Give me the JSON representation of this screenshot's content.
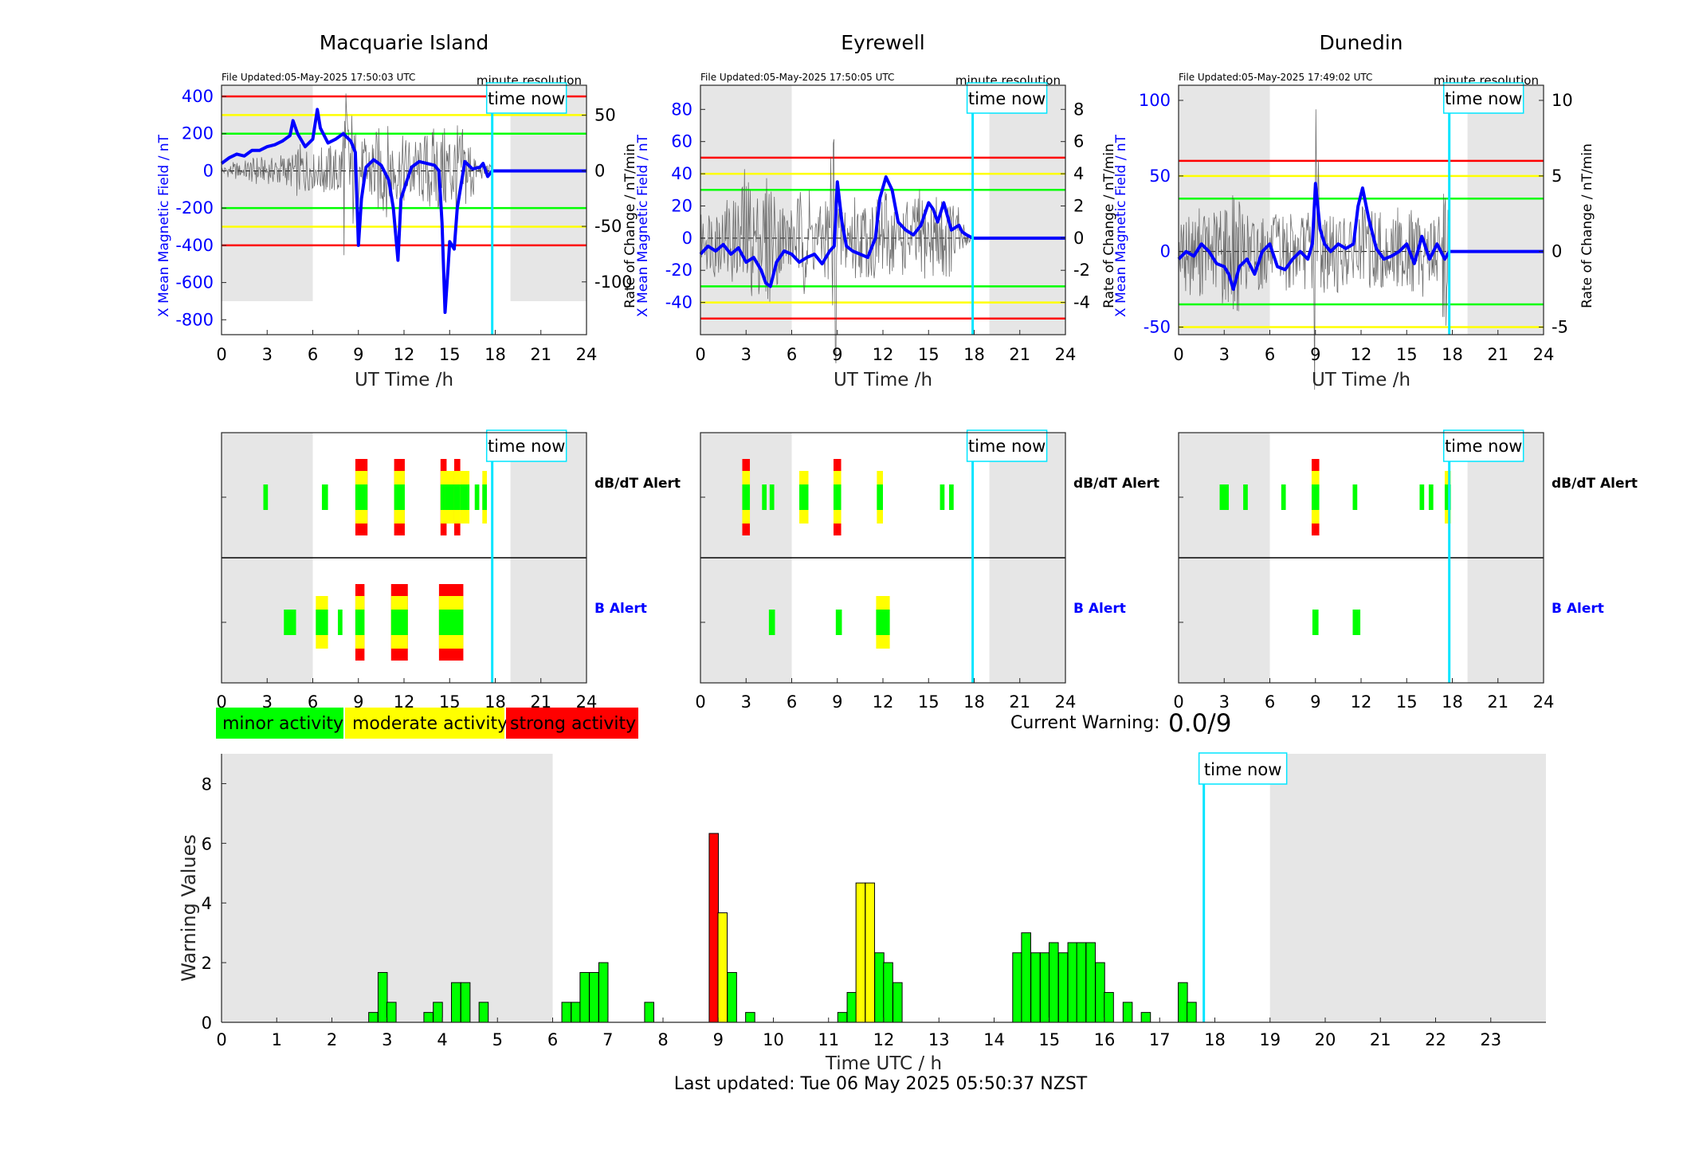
{
  "colors": {
    "red": "#ff0000",
    "yellow": "#ffff00",
    "green": "#00ff00",
    "blue": "#0000ff",
    "cyan": "#00e5ff",
    "grey_band": "#e6e6e6",
    "axis": "#262626"
  },
  "labels": {
    "time_now": "time now",
    "minute_resolution": "minute resolution",
    "ut_time": "UT Time /h",
    "y_left": "X Mean Magnetic Field / nT",
    "y_right": "Rate of Change / nT/min",
    "dbdt_alert": "dB/dT Alert",
    "b_alert": "B Alert",
    "minor": "minor activity",
    "moderate": "moderate activity",
    "strong": "strong activity",
    "current_warning_label": "Current Warning:",
    "current_warning_value": "0.0/9",
    "warning_values": "Warning Values",
    "time_utc": "Time UTC / h",
    "last_updated": "Last updated: Tue 06 May 2025 05:50:37 NZST"
  },
  "chart_data": [
    {
      "type": "line",
      "title": "Macquarie Island",
      "file_updated": "File Updated:05-May-2025 17:50:03 UTC",
      "xlabel": "UT Time /h",
      "ylabel": "X Mean Magnetic Field / nT",
      "y2label": "Rate of Change / nT/min",
      "xlim": [
        0,
        24
      ],
      "ylim": [
        -880,
        460
      ],
      "y2lim": [
        -147.5,
        77
      ],
      "xticks": [
        0,
        3,
        6,
        9,
        12,
        15,
        18,
        21,
        24
      ],
      "yticks": [
        400,
        200,
        0,
        -200,
        -400,
        -600,
        -800
      ],
      "y2ticks": [
        50,
        0,
        -50,
        -100
      ],
      "grey_bands": [
        [
          0,
          6
        ],
        [
          19,
          24
        ]
      ],
      "grey_band_bottom": -700,
      "time_now": 17.8,
      "thresholds": {
        "red": [
          400,
          -400
        ],
        "yellow": [
          300,
          -300
        ],
        "green": [
          200,
          -200
        ]
      },
      "x": [
        0,
        0.5,
        1,
        1.5,
        2,
        2.5,
        3,
        3.5,
        4,
        4.5,
        4.7,
        5,
        5.5,
        6,
        6.3,
        6.5,
        7,
        7.5,
        8,
        8.5,
        8.8,
        9,
        9.2,
        9.5,
        10,
        10.5,
        11,
        11.3,
        11.6,
        11.8,
        12.2,
        12.5,
        13,
        13.5,
        14,
        14.3,
        14.5,
        14.7,
        14.9,
        15,
        15.3,
        15.5,
        16,
        16.5,
        17,
        17.2,
        17.5,
        17.8
      ],
      "values": [
        40,
        70,
        90,
        80,
        110,
        110,
        130,
        140,
        160,
        190,
        270,
        200,
        130,
        170,
        330,
        230,
        150,
        170,
        200,
        160,
        100,
        -400,
        -150,
        20,
        60,
        30,
        -50,
        -200,
        -480,
        -150,
        -50,
        20,
        50,
        40,
        30,
        0,
        -280,
        -760,
        -520,
        -380,
        -420,
        -200,
        50,
        10,
        20,
        40,
        -30,
        0
      ],
      "after_now": 0,
      "rate_of_change_envelope": [
        4,
        6,
        8,
        6,
        10,
        12,
        14,
        10,
        12,
        14,
        16,
        14,
        16,
        24,
        22,
        18,
        16,
        22,
        24,
        22,
        30,
        80,
        60,
        40,
        30,
        34,
        38,
        40,
        42,
        38,
        30,
        32,
        34,
        30,
        28,
        36,
        40,
        42,
        40,
        44,
        42,
        40,
        36,
        32,
        10,
        8,
        6,
        4
      ]
    },
    {
      "type": "line",
      "title": "Eyrewell",
      "file_updated": "File Updated:05-May-2025 17:50:05 UTC",
      "xlabel": "UT Time /h",
      "ylabel": "X Mean Magnetic Field / nT",
      "y2label": "Rate of Change / nT/min",
      "xlim": [
        0,
        24
      ],
      "ylim": [
        -60,
        95
      ],
      "y2lim": [
        -6,
        9.5
      ],
      "xticks": [
        0,
        3,
        6,
        9,
        12,
        15,
        18,
        21,
        24
      ],
      "yticks": [
        80,
        60,
        40,
        20,
        0,
        -20,
        -40
      ],
      "y2ticks": [
        8,
        6,
        4,
        2,
        0,
        -2,
        -4
      ],
      "grey_bands": [
        [
          0,
          6
        ],
        [
          19,
          24
        ]
      ],
      "grey_band_bottom": -60,
      "time_now": 17.9,
      "thresholds": {
        "red": [
          50,
          -50
        ],
        "yellow": [
          40,
          -40
        ],
        "green": [
          30,
          -30
        ]
      },
      "x": [
        0,
        0.5,
        1,
        1.5,
        2,
        2.5,
        3,
        3.5,
        4,
        4.3,
        4.6,
        5,
        5.5,
        6,
        6.5,
        7,
        7.5,
        8,
        8.5,
        8.8,
        9,
        9.3,
        9.6,
        10,
        10.5,
        11,
        11.5,
        11.8,
        12.2,
        12.6,
        13,
        13.5,
        14,
        14.5,
        15,
        15.3,
        15.6,
        16,
        16.5,
        17,
        17.2,
        17.5,
        17.9
      ],
      "values": [
        -10,
        -5,
        -8,
        -4,
        -10,
        -6,
        -15,
        -12,
        -20,
        -28,
        -30,
        -15,
        -8,
        -10,
        -15,
        -12,
        -10,
        -16,
        -8,
        -5,
        35,
        10,
        -5,
        -8,
        -10,
        -12,
        0,
        25,
        38,
        30,
        10,
        5,
        2,
        8,
        22,
        18,
        10,
        22,
        5,
        8,
        4,
        2,
        0
      ],
      "after_now": 0,
      "rate_of_change_envelope": [
        1.5,
        2,
        2.5,
        2,
        3,
        2.5,
        4.5,
        4,
        3,
        3.5,
        4.2,
        3,
        2.5,
        2.2,
        2,
        3,
        3.5,
        2.5,
        2,
        3,
        8.5,
        3,
        2.5,
        3,
        2.5,
        2.5,
        3,
        2.5,
        3,
        2.5,
        2,
        2.5,
        2.2,
        3,
        2.6,
        2.5,
        3,
        2.8,
        2.5,
        2.2,
        1,
        0.5,
        0.2
      ]
    },
    {
      "type": "line",
      "title": "Dunedin",
      "file_updated": "File Updated:05-May-2025 17:49:02 UTC",
      "xlabel": "UT Time /h",
      "ylabel": "X Mean Magnetic Field / nT",
      "y2label": "Rate of Change / nT/min",
      "xlim": [
        0,
        24
      ],
      "ylim": [
        -55,
        110
      ],
      "y2lim": [
        -5.5,
        11
      ],
      "xticks": [
        0,
        3,
        6,
        9,
        12,
        15,
        18,
        21,
        24
      ],
      "yticks": [
        100,
        50,
        0,
        -50
      ],
      "y2ticks": [
        10,
        5,
        0,
        -5
      ],
      "grey_bands": [
        [
          0,
          6
        ],
        [
          19,
          24
        ]
      ],
      "grey_band_bottom": -55,
      "time_now": 17.8,
      "thresholds": {
        "red": [
          60
        ],
        "yellow": [
          50,
          -50
        ],
        "green": [
          35,
          -35
        ]
      },
      "x": [
        0,
        0.5,
        1,
        1.5,
        2,
        2.5,
        3,
        3.3,
        3.6,
        4,
        4.5,
        5,
        5.5,
        6,
        6.5,
        7,
        7.5,
        8,
        8.5,
        8.8,
        9,
        9.3,
        9.6,
        10,
        10.5,
        11,
        11.5,
        11.8,
        12.1,
        12.5,
        13,
        13.5,
        14,
        14.5,
        15,
        15.5,
        16,
        16.5,
        17,
        17.5,
        17.8
      ],
      "values": [
        -5,
        0,
        -3,
        5,
        0,
        -8,
        -10,
        -15,
        -25,
        -10,
        -5,
        -15,
        0,
        5,
        -10,
        -12,
        -5,
        0,
        -5,
        5,
        45,
        15,
        5,
        0,
        5,
        2,
        5,
        30,
        42,
        22,
        2,
        -5,
        -3,
        0,
        5,
        -8,
        10,
        -5,
        5,
        -5,
        0
      ],
      "after_now": 0,
      "rate_of_change_envelope": [
        2,
        3,
        2.5,
        3,
        2.5,
        3,
        4,
        3.5,
        4,
        3,
        2.5,
        3,
        2.5,
        2,
        2.5,
        3,
        2.5,
        2,
        2.5,
        3,
        10,
        3,
        2.5,
        3,
        2.5,
        2,
        2.5,
        3,
        3.5,
        3,
        2.5,
        2.5,
        3,
        2.5,
        3,
        2.5,
        3,
        2.5,
        2.5,
        5,
        1
      ]
    },
    {
      "type": "bar",
      "title": "",
      "xlabel": "Time UTC / h",
      "ylabel": "Warning Values",
      "xlim": [
        0,
        24
      ],
      "ylim": [
        0,
        9
      ],
      "xticks": [
        0,
        1,
        2,
        3,
        4,
        5,
        6,
        7,
        8,
        9,
        10,
        11,
        12,
        13,
        14,
        15,
        16,
        17,
        18,
        19,
        20,
        21,
        22,
        23
      ],
      "yticks": [
        0,
        2,
        4,
        6,
        8
      ],
      "grey_bands": [
        [
          0,
          6
        ],
        [
          19,
          24
        ]
      ],
      "time_now": 17.8,
      "bar_width_h": 0.1667,
      "x": [
        2.75,
        2.92,
        3.08,
        3.75,
        3.92,
        4.25,
        4.42,
        4.75,
        6.25,
        6.42,
        6.58,
        6.75,
        6.92,
        7.75,
        8.92,
        9.08,
        9.25,
        9.58,
        11.25,
        11.42,
        11.58,
        11.75,
        11.92,
        12.08,
        12.25,
        14.42,
        14.58,
        14.75,
        14.92,
        15.08,
        15.25,
        15.42,
        15.58,
        15.75,
        15.92,
        16.08,
        16.42,
        16.75,
        17.42,
        17.58
      ],
      "values": [
        0.33,
        1.67,
        0.67,
        0.33,
        0.67,
        1.33,
        1.33,
        0.67,
        0.67,
        0.67,
        1.67,
        1.67,
        2.0,
        0.67,
        6.33,
        3.67,
        1.67,
        0.33,
        0.33,
        1.0,
        4.67,
        4.67,
        2.33,
        2.0,
        1.33,
        2.33,
        3.0,
        2.33,
        2.33,
        2.67,
        2.33,
        2.67,
        2.67,
        2.67,
        2.0,
        1.0,
        0.67,
        0.33,
        1.33,
        0.67
      ],
      "levels": [
        "green",
        "green",
        "green",
        "green",
        "green",
        "green",
        "green",
        "green",
        "green",
        "green",
        "green",
        "green",
        "green",
        "green",
        "red",
        "yellow",
        "green",
        "green",
        "green",
        "green",
        "yellow",
        "yellow",
        "green",
        "green",
        "green",
        "green",
        "green",
        "green",
        "green",
        "green",
        "green",
        "green",
        "green",
        "green",
        "green",
        "green",
        "green",
        "green",
        "green",
        "green"
      ]
    }
  ],
  "alert_panels": [
    {
      "station": "Macquarie Island",
      "time_now": 17.8,
      "dbdt": [
        {
          "t": 2.9,
          "w": 0.3,
          "lvl": 1
        },
        {
          "t": 6.8,
          "w": 0.4,
          "lvl": 1
        },
        {
          "t": 9.2,
          "w": 0.8,
          "lvl": 3
        },
        {
          "t": 11.7,
          "w": 0.7,
          "lvl": 3
        },
        {
          "t": 14.6,
          "w": 0.4,
          "lvl": 3
        },
        {
          "t": 15.0,
          "w": 0.6,
          "lvl": 2
        },
        {
          "t": 15.5,
          "w": 0.4,
          "lvl": 3
        },
        {
          "t": 16.0,
          "w": 0.6,
          "lvl": 2
        },
        {
          "t": 16.8,
          "w": 0.3,
          "lvl": 1
        },
        {
          "t": 17.3,
          "w": 0.3,
          "lvl": 2
        }
      ],
      "b": [
        {
          "t": 4.5,
          "w": 0.8,
          "lvl": 1
        },
        {
          "t": 6.6,
          "w": 0.8,
          "lvl": 2
        },
        {
          "t": 7.8,
          "w": 0.3,
          "lvl": 1
        },
        {
          "t": 9.1,
          "w": 0.6,
          "lvl": 3
        },
        {
          "t": 11.7,
          "w": 1.1,
          "lvl": 3
        },
        {
          "t": 15.1,
          "w": 1.6,
          "lvl": 3
        }
      ]
    },
    {
      "station": "Eyrewell",
      "time_now": 17.9,
      "dbdt": [
        {
          "t": 3.0,
          "w": 0.5,
          "lvl": 3
        },
        {
          "t": 4.2,
          "w": 0.3,
          "lvl": 1
        },
        {
          "t": 4.7,
          "w": 0.3,
          "lvl": 1
        },
        {
          "t": 6.8,
          "w": 0.6,
          "lvl": 2
        },
        {
          "t": 9.0,
          "w": 0.5,
          "lvl": 3
        },
        {
          "t": 11.8,
          "w": 0.4,
          "lvl": 2
        },
        {
          "t": 15.9,
          "w": 0.3,
          "lvl": 1
        },
        {
          "t": 16.5,
          "w": 0.3,
          "lvl": 1
        }
      ],
      "b": [
        {
          "t": 4.7,
          "w": 0.4,
          "lvl": 1
        },
        {
          "t": 9.1,
          "w": 0.4,
          "lvl": 1
        },
        {
          "t": 12.0,
          "w": 0.9,
          "lvl": 2
        }
      ]
    },
    {
      "station": "Dunedin",
      "time_now": 17.8,
      "dbdt": [
        {
          "t": 3.0,
          "w": 0.6,
          "lvl": 1
        },
        {
          "t": 4.4,
          "w": 0.3,
          "lvl": 1
        },
        {
          "t": 6.9,
          "w": 0.3,
          "lvl": 1
        },
        {
          "t": 9.0,
          "w": 0.5,
          "lvl": 3
        },
        {
          "t": 11.6,
          "w": 0.3,
          "lvl": 1
        },
        {
          "t": 16.0,
          "w": 0.3,
          "lvl": 1
        },
        {
          "t": 16.6,
          "w": 0.3,
          "lvl": 1
        },
        {
          "t": 17.7,
          "w": 0.4,
          "lvl": 2
        }
      ],
      "b": [
        {
          "t": 9.0,
          "w": 0.4,
          "lvl": 1
        },
        {
          "t": 11.7,
          "w": 0.5,
          "lvl": 1
        }
      ]
    }
  ]
}
